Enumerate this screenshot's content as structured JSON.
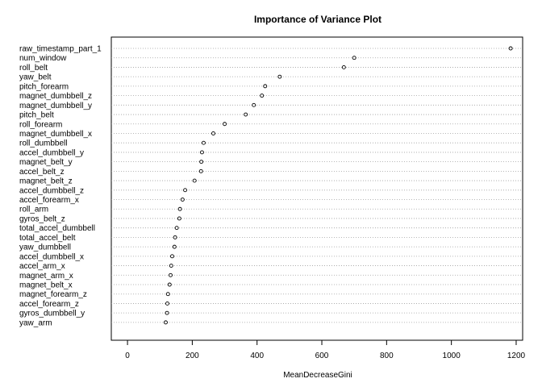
{
  "chart_data": {
    "type": "scatter",
    "title": "Importance of Variance Plot",
    "xlabel": "MeanDecreaseGini",
    "ylabel": "",
    "xlim": [
      -50,
      1220
    ],
    "x_ticks": [
      0,
      200,
      400,
      600,
      800,
      1000,
      1200
    ],
    "grid": "dotted horizontal guide lines",
    "categories": [
      "raw_timestamp_part_1",
      "num_window",
      "roll_belt",
      "yaw_belt",
      "pitch_forearm",
      "magnet_dumbbell_z",
      "magnet_dumbbell_y",
      "pitch_belt",
      "roll_forearm",
      "magnet_dumbbell_x",
      "roll_dumbbell",
      "accel_dumbbell_y",
      "magnet_belt_y",
      "accel_belt_z",
      "magnet_belt_z",
      "accel_dumbbell_z",
      "accel_forearm_x",
      "roll_arm",
      "gyros_belt_z",
      "total_accel_dumbbell",
      "total_accel_belt",
      "yaw_dumbbell",
      "accel_dumbbell_x",
      "accel_arm_x",
      "magnet_arm_x",
      "magnet_belt_x",
      "magnet_forearm_z",
      "accel_forearm_z",
      "gyros_dumbbell_y",
      "yaw_arm"
    ],
    "values": [
      1183,
      700,
      668,
      470,
      425,
      415,
      390,
      365,
      300,
      265,
      235,
      230,
      228,
      227,
      207,
      178,
      170,
      162,
      160,
      152,
      147,
      145,
      138,
      135,
      133,
      130,
      125,
      123,
      122,
      118
    ]
  }
}
